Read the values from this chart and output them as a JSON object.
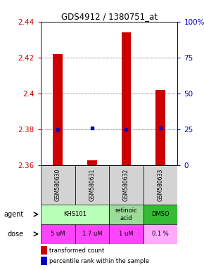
{
  "title": "GDS4912 / 1380751_at",
  "samples": [
    "GSM580630",
    "GSM580631",
    "GSM580632",
    "GSM580633"
  ],
  "bar_bottoms": [
    2.36,
    2.36,
    2.36,
    2.36
  ],
  "bar_tops": [
    2.422,
    2.363,
    2.434,
    2.402
  ],
  "percentile_values": [
    2.38,
    2.381,
    2.38,
    2.381
  ],
  "ylim": [
    2.36,
    2.44
  ],
  "yticks_left": [
    2.36,
    2.38,
    2.4,
    2.42,
    2.44
  ],
  "yticks_right": [
    0,
    25,
    50,
    75,
    100
  ],
  "yticks_right_labels": [
    "0",
    "25",
    "50",
    "75",
    "100%"
  ],
  "bar_color": "#cc0000",
  "percentile_color": "#0000cc",
  "tick_color_left": "#cc0000",
  "tick_color_right": "#0000cc",
  "gsm_bg": "#d3d3d3",
  "agent_colors": [
    "#b8ffb8",
    "#99dd99",
    "#33bb33"
  ],
  "dose_colors": [
    "#ff44ff",
    "#ff44ff",
    "#ff44ff",
    "#ffaaff"
  ],
  "legend_red_label": "transformed count",
  "legend_blue_label": "percentile rank within the sample"
}
